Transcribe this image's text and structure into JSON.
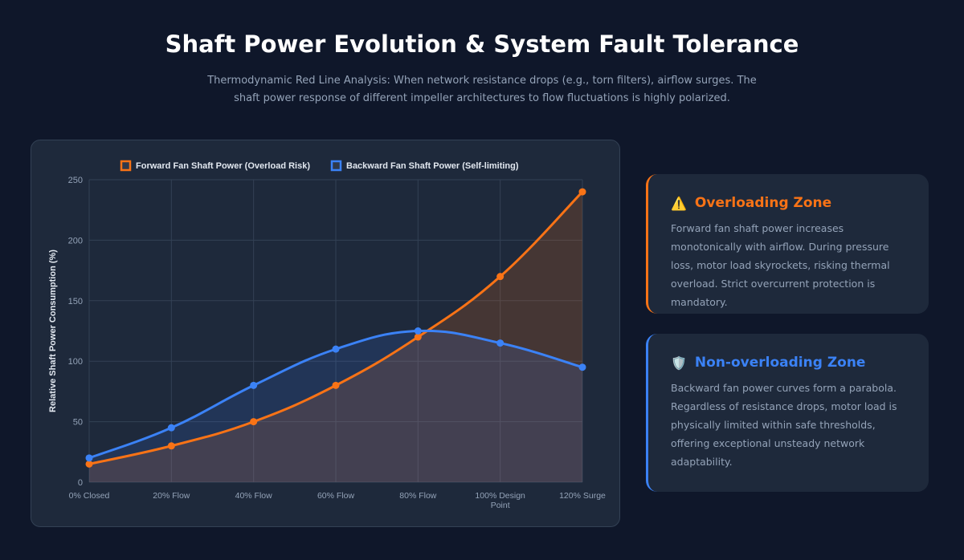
{
  "header": {
    "title": "Shaft Power Evolution & System Fault Tolerance",
    "subtitle": "Thermodynamic Red Line Analysis: When network resistance drops (e.g., torn filters), airflow surges. The shaft power response of different impeller architectures to flow fluctuations is highly polarized."
  },
  "chart_data": {
    "type": "line",
    "categories": [
      "0% Closed",
      "20% Flow",
      "40% Flow",
      "60% Flow",
      "80% Flow",
      "100% Design Point",
      "120% Surge"
    ],
    "series": [
      {
        "name": "Forward Fan Shaft Power (Overload Risk)",
        "values": [
          15,
          30,
          50,
          80,
          120,
          170,
          240
        ],
        "color": "#f97316",
        "fill": true
      },
      {
        "name": "Backward Fan Shaft Power (Self-limiting)",
        "values": [
          20,
          45,
          80,
          110,
          125,
          115,
          95
        ],
        "color": "#3b82f6",
        "fill": true
      }
    ],
    "ylabel": "Relative Shaft Power Consumption (%)",
    "xlabel": "",
    "ylim": [
      0,
      250
    ],
    "yticks": [
      0,
      50,
      100,
      150,
      200,
      250
    ],
    "grid": true,
    "legend": "top"
  },
  "cards": [
    {
      "icon": "warning-icon",
      "glyph": "⚠️",
      "title": "Overloading Zone",
      "color": "#f97316",
      "text": "Forward fan shaft power increases monotonically with airflow. During pressure loss, motor load skyrockets, risking thermal overload. Strict overcurrent protection is mandatory."
    },
    {
      "icon": "shield-icon",
      "glyph": "🛡️",
      "title": "Non-overloading Zone",
      "color": "#3b82f6",
      "text": "Backward fan power curves form a parabola. Regardless of resistance drops, motor load is physically limited within safe thresholds, offering exceptional unsteady network adaptability."
    }
  ]
}
